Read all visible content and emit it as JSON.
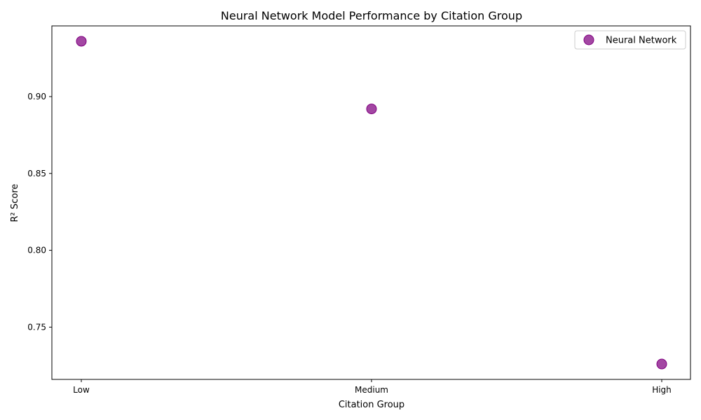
{
  "chart_data": {
    "type": "scatter",
    "title": "Neural Network Model Performance by Citation Group",
    "xlabel": "Citation Group",
    "ylabel": "R² Score",
    "categories": [
      "Low",
      "Medium",
      "High"
    ],
    "series": [
      {
        "name": "Neural Network",
        "color": "#800080",
        "values": [
          0.936,
          0.892,
          0.726
        ]
      }
    ],
    "ylim": [
      0.716,
      0.946
    ],
    "yticks": [
      0.75,
      0.8,
      0.85,
      0.9
    ],
    "ytick_labels": [
      "0.75",
      "0.80",
      "0.85",
      "0.90"
    ],
    "grid": false,
    "legend": "top-right"
  }
}
